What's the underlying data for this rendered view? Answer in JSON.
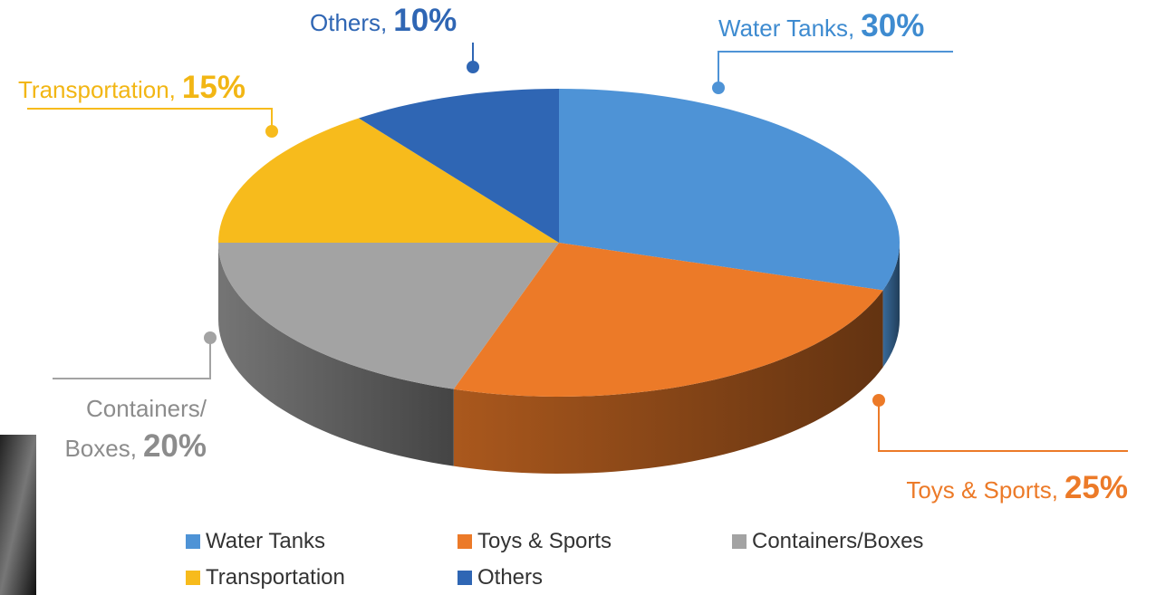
{
  "chart_data": {
    "type": "pie3d",
    "categories": [
      "Water Tanks",
      "Toys & Sports",
      "Containers/Boxes",
      "Transportation",
      "Others"
    ],
    "values": [
      30,
      25,
      20,
      15,
      10
    ],
    "value_labels": [
      "30%",
      "25%",
      "20%",
      "15%",
      "10%"
    ],
    "label_texts": [
      "Water Tanks,",
      "Toys & Sports,",
      "Containers/ Boxes,",
      "Transportation,",
      "Others,"
    ],
    "colors": [
      "#4e93d6",
      "#ec7a28",
      "#a3a3a3",
      "#f7bb1c",
      "#2f66b4"
    ],
    "legend": "bottom"
  }
}
